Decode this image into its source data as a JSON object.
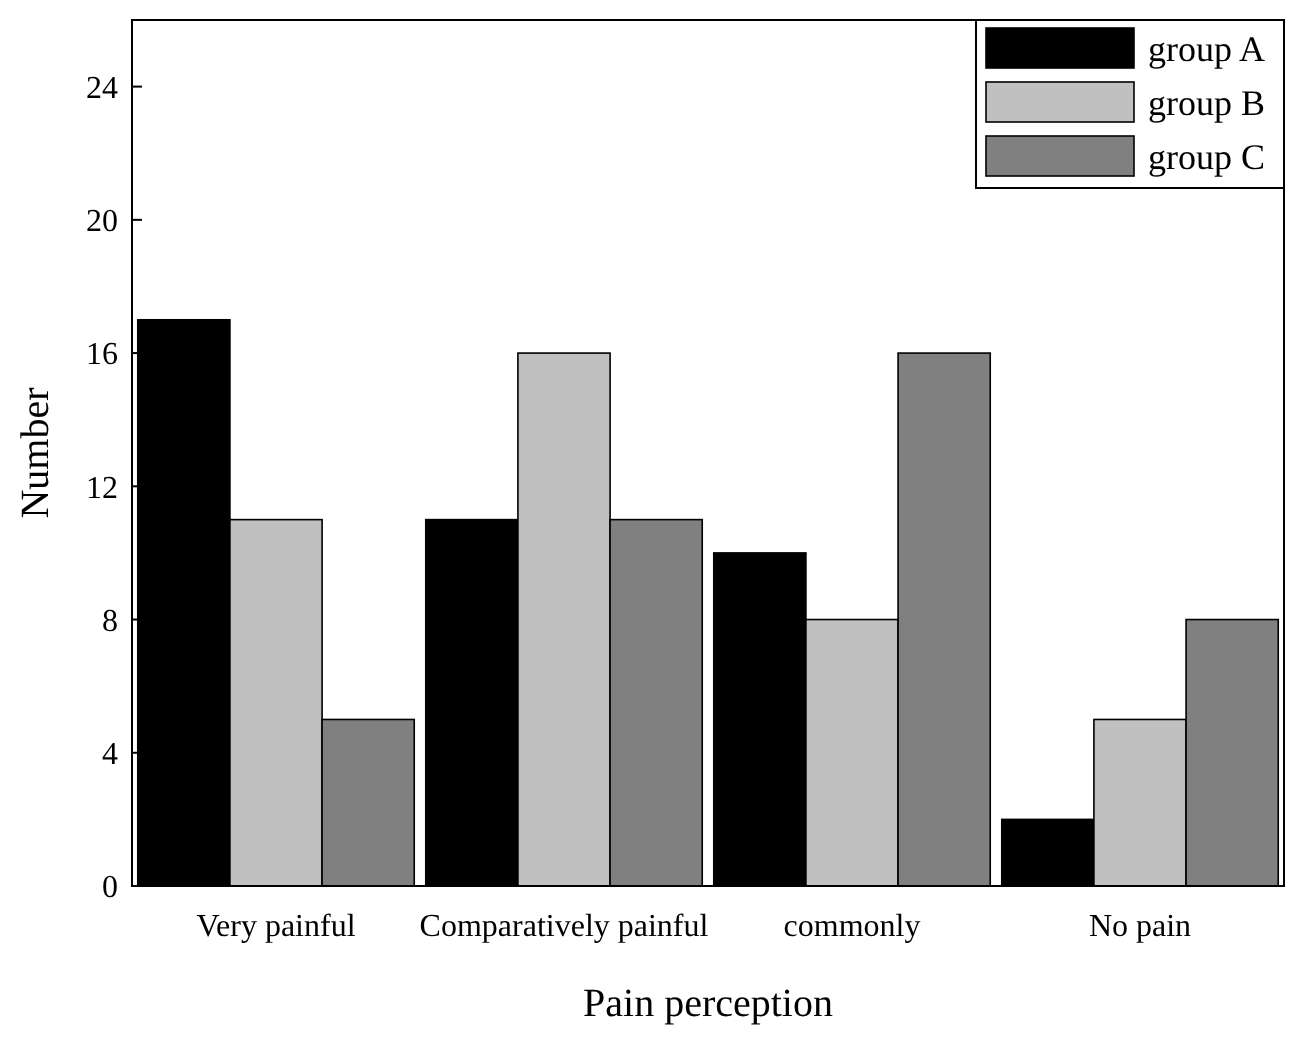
{
  "chart_data": {
    "type": "bar",
    "xlabel": "Pain perception",
    "ylabel": "Number",
    "categories": [
      "Very painful",
      "Comparatively painful",
      "commonly",
      "No pain"
    ],
    "series": [
      {
        "name": "group A",
        "color": "#000000",
        "values": [
          17,
          11,
          10,
          2
        ]
      },
      {
        "name": "group B",
        "color": "#c0c0c0",
        "values": [
          11,
          16,
          8,
          5
        ]
      },
      {
        "name": "group C",
        "color": "#808080",
        "values": [
          5,
          11,
          16,
          8
        ]
      }
    ],
    "ylim": [
      0,
      26
    ],
    "yticks": [
      0,
      4,
      8,
      12,
      16,
      20,
      24
    ],
    "grid": false,
    "legend": "top right"
  }
}
